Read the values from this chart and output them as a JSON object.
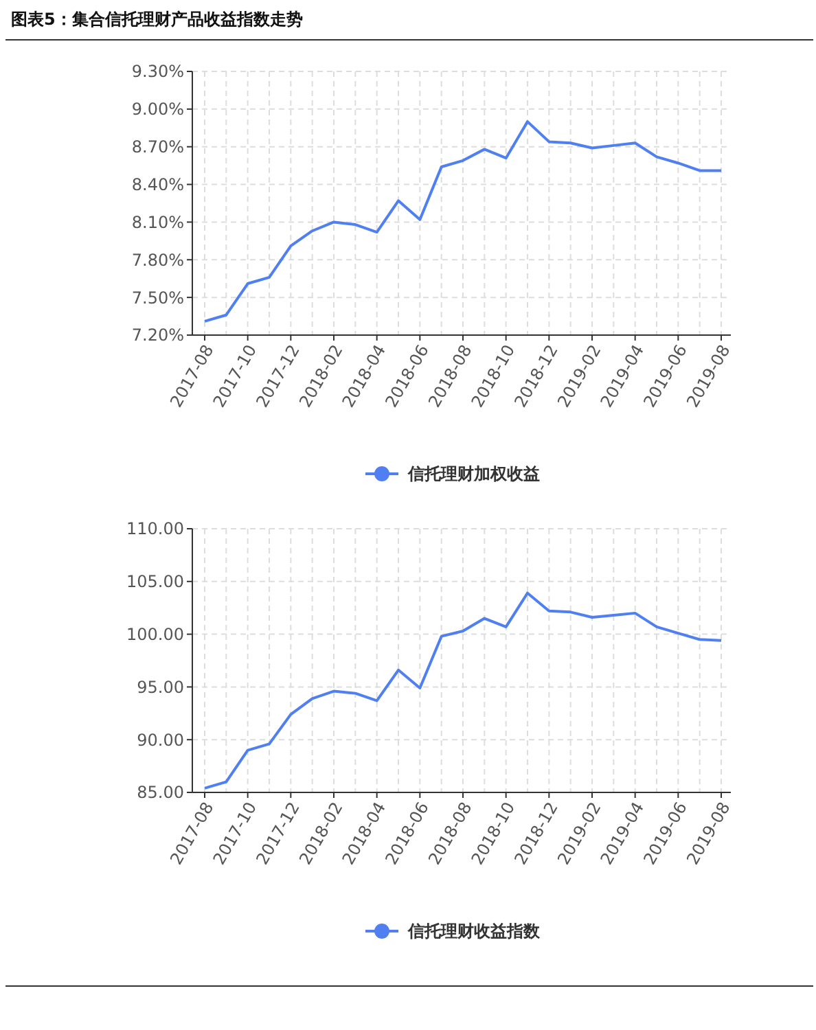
{
  "chart_data": [
    {
      "type": "line",
      "title": "图表5：集合信托理财产品收益指数走势",
      "categories": [
        "2017-08",
        null,
        "2017-10",
        null,
        "2017-12",
        null,
        "2018-02",
        null,
        "2018-04",
        null,
        "2018-06",
        null,
        "2018-08",
        null,
        "2018-10",
        null,
        "2018-12",
        null,
        "2019-02",
        null,
        "2019-04",
        null,
        "2019-06",
        null,
        "2019-08"
      ],
      "series": [
        {
          "name": "信托理财加权收益",
          "color": "#4f7ff0",
          "values": [
            7.31,
            7.36,
            7.61,
            7.66,
            7.91,
            8.03,
            8.1,
            8.08,
            8.02,
            8.27,
            8.12,
            8.54,
            8.59,
            8.68,
            8.61,
            8.9,
            8.74,
            8.73,
            8.69,
            8.71,
            8.73,
            8.62,
            8.57,
            8.51,
            8.51
          ]
        }
      ],
      "ylim": [
        7.2,
        9.3
      ],
      "yticks": [
        {
          "value": 7.2,
          "label": "7.20%"
        },
        {
          "value": 7.5,
          "label": "7.50%"
        },
        {
          "value": 7.8,
          "label": "7.80%"
        },
        {
          "value": 8.1,
          "label": "8.10%"
        },
        {
          "value": 8.4,
          "label": "8.40%"
        },
        {
          "value": 8.7,
          "label": "8.70%"
        },
        {
          "value": 9.0,
          "label": "9.00%"
        },
        {
          "value": 9.3,
          "label": "9.30%"
        }
      ],
      "grid": true,
      "legend": "bottom"
    },
    {
      "type": "line",
      "categories": [
        "2017-08",
        null,
        "2017-10",
        null,
        "2017-12",
        null,
        "2018-02",
        null,
        "2018-04",
        null,
        "2018-06",
        null,
        "2018-08",
        null,
        "2018-10",
        null,
        "2018-12",
        null,
        "2019-02",
        null,
        "2019-04",
        null,
        "2019-06",
        null,
        "2019-08"
      ],
      "series": [
        {
          "name": "信托理财收益指数",
          "color": "#4f7ff0",
          "values": [
            85.4,
            86.0,
            89.0,
            89.6,
            92.4,
            93.9,
            94.6,
            94.4,
            93.7,
            96.6,
            94.9,
            99.8,
            100.3,
            101.5,
            100.7,
            103.9,
            102.2,
            102.1,
            101.6,
            101.8,
            102.0,
            100.7,
            100.1,
            99.5,
            99.4
          ]
        }
      ],
      "ylim": [
        85,
        110
      ],
      "yticks": [
        {
          "value": 85,
          "label": "85.00"
        },
        {
          "value": 90,
          "label": "90.00"
        },
        {
          "value": 95,
          "label": "95.00"
        },
        {
          "value": 100,
          "label": "100.00"
        },
        {
          "value": 105,
          "label": "105.00"
        },
        {
          "value": 110,
          "label": "110.00"
        }
      ],
      "grid": true,
      "legend": "bottom"
    }
  ]
}
